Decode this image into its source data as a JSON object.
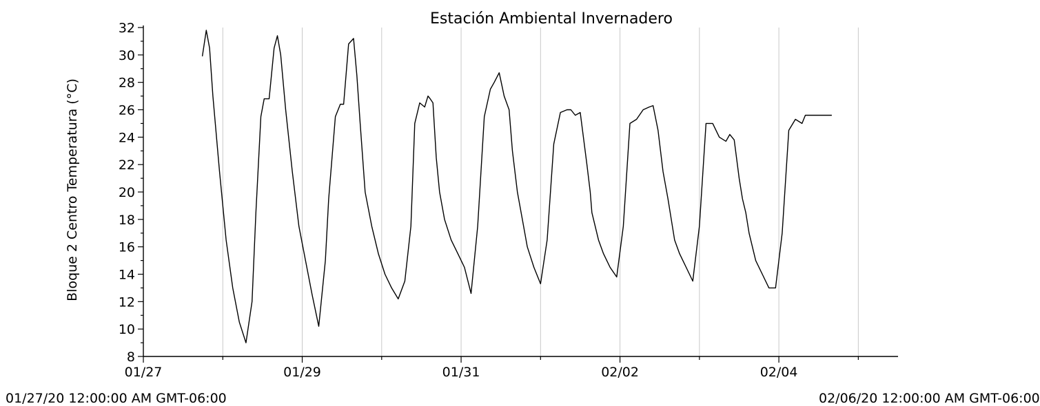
{
  "chart_data": {
    "type": "line",
    "title": "Estación Ambiental Invernadero",
    "xlabel": "",
    "ylabel": "Bloque 2 Centro Temperatura (°C)",
    "ylim": [
      8,
      32
    ],
    "xlim": [
      "2020-01-27",
      "2020-02-05T12:00"
    ],
    "yticks": [
      "8",
      "10",
      "12",
      "14",
      "16",
      "18",
      "20",
      "22",
      "24",
      "26",
      "28",
      "30",
      "32"
    ],
    "xticks": [
      {
        "date": "2020-01-27",
        "label": "01/27"
      },
      {
        "date": "2020-01-29",
        "label": "01/29"
      },
      {
        "date": "2020-01-31",
        "label": "01/31"
      },
      {
        "date": "2020-02-02",
        "label": "02/02"
      },
      {
        "date": "2020-02-04",
        "label": "02/04"
      }
    ],
    "grid": "vertical",
    "range_start": "01/27/20 12:00:00 AM GMT-06:00",
    "range_end": "02/06/20 12:00:00 AM GMT-06:00",
    "line_color": "#000000",
    "grid_color": "#c8c8c8",
    "series": [
      {
        "x": [
          "2020-01-27T17:50",
          "2020-01-27T19:00",
          "2020-01-27T20:00",
          "2020-01-27T21:00",
          "2020-01-27T23:00",
          "2020-01-28T01:00",
          "2020-01-28T03:00",
          "2020-01-28T05:00",
          "2020-01-28T07:00",
          "2020-01-28T08:50",
          "2020-01-28T10:00",
          "2020-01-28T11:30",
          "2020-01-28T12:30",
          "2020-01-28T14:00",
          "2020-01-28T15:30",
          "2020-01-28T16:30",
          "2020-01-28T17:30",
          "2020-01-28T19:00",
          "2020-01-28T21:00",
          "2020-01-28T23:00",
          "2020-01-29T01:00",
          "2020-01-29T03:00",
          "2020-01-29T05:00",
          "2020-01-29T07:00",
          "2020-01-29T08:00",
          "2020-01-29T10:00",
          "2020-01-29T11:30",
          "2020-01-29T12:30",
          "2020-01-29T14:00",
          "2020-01-29T15:30",
          "2020-01-29T16:30",
          "2020-01-29T17:30",
          "2020-01-29T19:00",
          "2020-01-29T21:00",
          "2020-01-29T23:00",
          "2020-01-30T01:00",
          "2020-01-30T03:00",
          "2020-01-30T05:00",
          "2020-01-30T07:00",
          "2020-01-30T08:50",
          "2020-01-30T10:00",
          "2020-01-30T11:30",
          "2020-01-30T13:00",
          "2020-01-30T14:00",
          "2020-01-30T14:40",
          "2020-01-30T15:30",
          "2020-01-30T16:30",
          "2020-01-30T17:30",
          "2020-01-30T19:00",
          "2020-01-30T21:00",
          "2020-01-30T23:00",
          "2020-01-31T01:00",
          "2020-01-31T03:00",
          "2020-01-31T05:00",
          "2020-01-31T07:00",
          "2020-01-31T08:50",
          "2020-01-31T10:00",
          "2020-01-31T11:30",
          "2020-01-31T13:00",
          "2020-01-31T14:30",
          "2020-01-31T15:30",
          "2020-01-31T17:00",
          "2020-01-31T18:30",
          "2020-01-31T20:00",
          "2020-01-31T22:00",
          "2020-02-01T00:00",
          "2020-02-01T02:00",
          "2020-02-01T04:00",
          "2020-02-01T06:00",
          "2020-02-01T08:00",
          "2020-02-01T09:10",
          "2020-02-01T10:30",
          "2020-02-01T12:00",
          "2020-02-01T14:00",
          "2020-02-01T15:00",
          "2020-02-01T15:30",
          "2020-02-01T16:30",
          "2020-02-01T17:30",
          "2020-02-01T19:00",
          "2020-02-01T21:00",
          "2020-02-01T23:00",
          "2020-02-02T01:00",
          "2020-02-02T03:00",
          "2020-02-02T05:00",
          "2020-02-02T07:00",
          "2020-02-02T08:50",
          "2020-02-02T10:00",
          "2020-02-02T11:30",
          "2020-02-02T13:00",
          "2020-02-02T14:30",
          "2020-02-02T15:30",
          "2020-02-02T16:30",
          "2020-02-02T18:00",
          "2020-02-02T20:00",
          "2020-02-02T22:00",
          "2020-02-03T00:00",
          "2020-02-03T02:00",
          "2020-02-03T04:00",
          "2020-02-03T06:00",
          "2020-02-03T08:00",
          "2020-02-03T09:10",
          "2020-02-03T10:30",
          "2020-02-03T12:00",
          "2020-02-03T13:00",
          "2020-02-03T14:00",
          "2020-02-03T15:00",
          "2020-02-03T16:00",
          "2020-02-03T17:00",
          "2020-02-03T19:00",
          "2020-02-03T21:00",
          "2020-02-03T23:00",
          "2020-02-04T01:00",
          "2020-02-04T03:00",
          "2020-02-04T05:00",
          "2020-02-04T07:00",
          "2020-02-04T08:00",
          "2020-02-04T09:30",
          "2020-02-04T11:00",
          "2020-02-04T12:00",
          "2020-02-04T13:00",
          "2020-02-04T14:00",
          "2020-02-04T15:00",
          "2020-02-04T16:00"
        ],
        "values": [
          29.9,
          31.8,
          30.5,
          27.0,
          21.5,
          16.5,
          13.0,
          10.5,
          9.0,
          12.0,
          18.5,
          25.5,
          26.8,
          26.8,
          30.5,
          31.4,
          30.0,
          26.0,
          21.5,
          17.5,
          15.0,
          12.5,
          10.2,
          15.0,
          19.5,
          25.5,
          26.4,
          26.4,
          30.8,
          31.2,
          28.5,
          25.0,
          20.0,
          17.5,
          15.5,
          14.0,
          13.0,
          12.2,
          13.5,
          17.5,
          25.0,
          26.5,
          26.2,
          27.0,
          26.8,
          26.5,
          22.5,
          20.0,
          18.0,
          16.5,
          15.5,
          14.5,
          12.6,
          17.5,
          25.5,
          27.5,
          28.0,
          28.7,
          27.0,
          26.0,
          23.0,
          20.0,
          18.0,
          16.0,
          14.5,
          13.3,
          16.5,
          23.5,
          25.8,
          26.0,
          26.0,
          25.6,
          25.8,
          22.0,
          20.0,
          18.5,
          17.5,
          16.5,
          15.5,
          14.5,
          13.8,
          17.5,
          25.0,
          25.3,
          26.0,
          26.2,
          26.3,
          24.5,
          21.5,
          19.5,
          18.0,
          16.5,
          15.5,
          14.5,
          13.5,
          17.5,
          25.0,
          25.0,
          24.0,
          23.7,
          24.2,
          23.8,
          21.0,
          19.5,
          18.5,
          17.0,
          16.0,
          15.0,
          14.0,
          13.0,
          13.0,
          17.0,
          24.5,
          25.3,
          25.0,
          25.6,
          25.6,
          25.6,
          25.6,
          25.6,
          25.6,
          25.6,
          25.6
        ]
      }
    ]
  }
}
